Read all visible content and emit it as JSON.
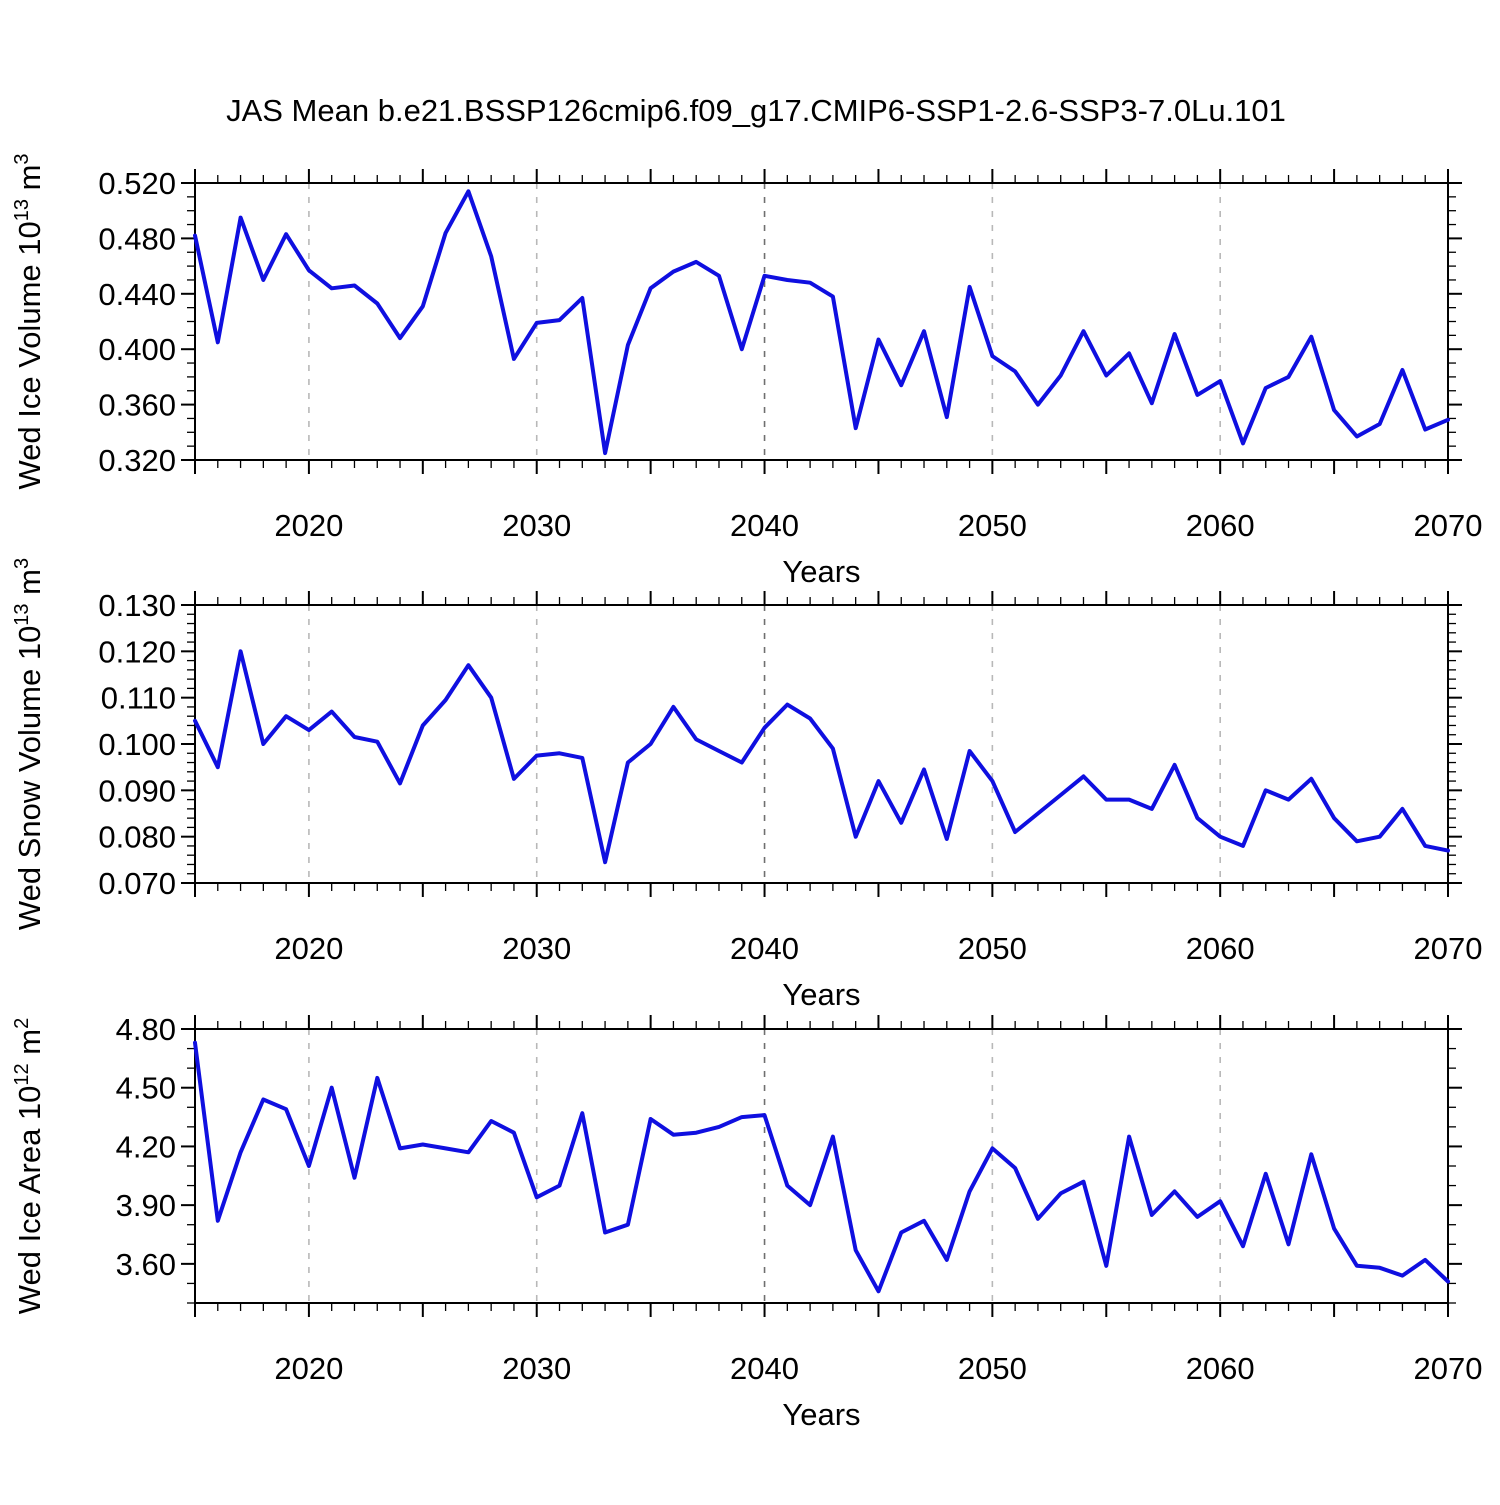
{
  "title": "JAS Mean b.e21.BSSP126cmip6.f09_g17.CMIP6-SSP1-2.6-SSP3-7.0Lu.101",
  "colors": {
    "line": "#0f0fe0",
    "axis": "#000000",
    "grid": "#b8b8b8",
    "grid_dark": "#6f6f6f"
  },
  "x_domain": {
    "start_year": 2015,
    "end_year": 2070
  },
  "chart_data": [
    {
      "type": "line",
      "name": "wed-ice-volume",
      "ylabel_parts": [
        [
          "Wed Ice Volume 10",
          0
        ],
        [
          "13",
          1
        ],
        [
          " m",
          0
        ],
        [
          "3",
          1
        ]
      ],
      "xlabel": "Years",
      "xtick_labels": [
        "2020",
        "2030",
        "2040",
        "2050",
        "2060",
        "2070"
      ],
      "grid_years": [
        2020,
        2030,
        2040,
        2050,
        2060
      ],
      "ylim": [
        0.32,
        0.52
      ],
      "ytick_labels": [
        "0.320",
        "0.360",
        "0.400",
        "0.440",
        "0.480",
        "0.520"
      ],
      "ytick_minor_step": 0.01,
      "x": [
        2015,
        2016,
        2017,
        2018,
        2019,
        2020,
        2021,
        2022,
        2023,
        2024,
        2025,
        2026,
        2027,
        2028,
        2029,
        2030,
        2031,
        2032,
        2033,
        2034,
        2035,
        2036,
        2037,
        2038,
        2039,
        2040,
        2041,
        2042,
        2043,
        2044,
        2045,
        2046,
        2047,
        2048,
        2049,
        2050,
        2051,
        2052,
        2053,
        2054,
        2055,
        2056,
        2057,
        2058,
        2059,
        2060,
        2061,
        2062,
        2063,
        2064,
        2065,
        2066,
        2067,
        2068,
        2069,
        2070
      ],
      "values": [
        0.482,
        0.405,
        0.495,
        0.45,
        0.483,
        0.457,
        0.444,
        0.446,
        0.433,
        0.408,
        0.431,
        0.484,
        0.514,
        0.467,
        0.393,
        0.419,
        0.421,
        0.437,
        0.325,
        0.403,
        0.444,
        0.456,
        0.463,
        0.453,
        0.4,
        0.453,
        0.45,
        0.448,
        0.438,
        0.343,
        0.407,
        0.374,
        0.413,
        0.351,
        0.445,
        0.395,
        0.384,
        0.36,
        0.381,
        0.413,
        0.381,
        0.397,
        0.361,
        0.411,
        0.367,
        0.377,
        0.332,
        0.372,
        0.38,
        0.409,
        0.356,
        0.337,
        0.346,
        0.385,
        0.342,
        0.349
      ]
    },
    {
      "type": "line",
      "name": "wed-snow-volume",
      "ylabel_parts": [
        [
          "Wed Snow Volume 10",
          0
        ],
        [
          "13",
          1
        ],
        [
          " m",
          0
        ],
        [
          "3",
          1
        ]
      ],
      "xlabel": "Years",
      "xtick_labels": [
        "2020",
        "2030",
        "2040",
        "2050",
        "2060",
        "2070"
      ],
      "grid_years": [
        2020,
        2030,
        2040,
        2050,
        2060
      ],
      "ylim": [
        0.07,
        0.13
      ],
      "ytick_labels": [
        "0.070",
        "0.080",
        "0.090",
        "0.100",
        "0.110",
        "0.120",
        "0.130"
      ],
      "ytick_minor_step": 0.002,
      "x": [
        2015,
        2016,
        2017,
        2018,
        2019,
        2020,
        2021,
        2022,
        2023,
        2024,
        2025,
        2026,
        2027,
        2028,
        2029,
        2030,
        2031,
        2032,
        2033,
        2034,
        2035,
        2036,
        2037,
        2038,
        2039,
        2040,
        2041,
        2042,
        2043,
        2044,
        2045,
        2046,
        2047,
        2048,
        2049,
        2050,
        2051,
        2052,
        2053,
        2054,
        2055,
        2056,
        2057,
        2058,
        2059,
        2060,
        2061,
        2062,
        2063,
        2064,
        2065,
        2066,
        2067,
        2068,
        2069,
        2070
      ],
      "values": [
        0.105,
        0.095,
        0.12,
        0.1,
        0.106,
        0.103,
        0.107,
        0.1015,
        0.1005,
        0.0915,
        0.104,
        0.1095,
        0.117,
        0.11,
        0.0925,
        0.0975,
        0.098,
        0.097,
        0.0745,
        0.096,
        0.1,
        0.108,
        0.101,
        0.0985,
        0.096,
        0.1035,
        0.1085,
        0.1055,
        0.099,
        0.08,
        0.092,
        0.083,
        0.0945,
        0.0795,
        0.0985,
        0.092,
        0.081,
        0.085,
        0.089,
        0.093,
        0.088,
        0.088,
        0.086,
        0.0955,
        0.084,
        0.08,
        0.078,
        0.09,
        0.088,
        0.0925,
        0.084,
        0.079,
        0.08,
        0.086,
        0.078,
        0.077
      ]
    },
    {
      "type": "line",
      "name": "wed-ice-area",
      "ylabel_parts": [
        [
          "Wed Ice Area 10",
          0
        ],
        [
          "12",
          1
        ],
        [
          " m",
          0
        ],
        [
          "2",
          1
        ]
      ],
      "xlabel": "Years",
      "xtick_labels": [
        "2020",
        "2030",
        "2040",
        "2050",
        "2060",
        "2070"
      ],
      "grid_years": [
        2020,
        2030,
        2040,
        2050,
        2060
      ],
      "ylim": [
        3.4,
        4.8
      ],
      "ytick_labels": [
        "3.60",
        "3.90",
        "4.20",
        "4.50",
        "4.80"
      ],
      "ytick_minor_step": 0.1,
      "x": [
        2015,
        2016,
        2017,
        2018,
        2019,
        2020,
        2021,
        2022,
        2023,
        2024,
        2025,
        2026,
        2027,
        2028,
        2029,
        2030,
        2031,
        2032,
        2033,
        2034,
        2035,
        2036,
        2037,
        2038,
        2039,
        2040,
        2041,
        2042,
        2043,
        2044,
        2045,
        2046,
        2047,
        2048,
        2049,
        2050,
        2051,
        2052,
        2053,
        2054,
        2055,
        2056,
        2057,
        2058,
        2059,
        2060,
        2061,
        2062,
        2063,
        2064,
        2065,
        2066,
        2067,
        2068,
        2069,
        2070
      ],
      "values": [
        4.73,
        3.82,
        4.17,
        4.44,
        4.39,
        4.1,
        4.5,
        4.04,
        4.55,
        4.19,
        4.21,
        4.19,
        4.17,
        4.33,
        4.27,
        3.94,
        4.0,
        4.37,
        3.76,
        3.8,
        4.34,
        4.26,
        4.27,
        4.3,
        4.35,
        4.36,
        4.0,
        3.9,
        4.25,
        3.67,
        3.46,
        3.76,
        3.82,
        3.62,
        3.97,
        4.19,
        4.09,
        3.83,
        3.96,
        4.02,
        3.59,
        4.25,
        3.85,
        3.97,
        3.84,
        3.92,
        3.69,
        4.06,
        3.7,
        4.16,
        3.78,
        3.59,
        3.58,
        3.54,
        3.62,
        3.51
      ]
    }
  ]
}
